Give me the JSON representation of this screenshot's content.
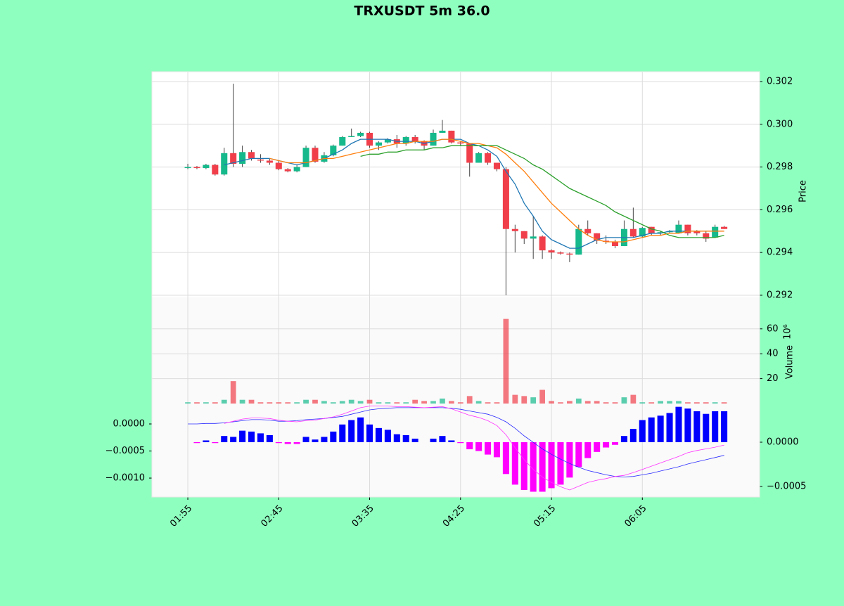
{
  "chart_data": {
    "type": "candlestick",
    "title": "TRXUSDT 5m 36.0",
    "categories": [
      "01:55",
      null,
      null,
      null,
      null,
      null,
      null,
      null,
      null,
      null,
      "02:45",
      null,
      null,
      null,
      null,
      null,
      null,
      null,
      null,
      null,
      "03:35",
      null,
      null,
      null,
      null,
      null,
      null,
      null,
      null,
      null,
      "04:25",
      null,
      null,
      null,
      null,
      null,
      null,
      null,
      null,
      null,
      "05:15",
      null,
      null,
      null,
      null,
      null,
      null,
      null,
      null,
      null,
      "06:05",
      null,
      null,
      null,
      null,
      null,
      null,
      null,
      null,
      null
    ],
    "xlim": [
      -3.95,
      62.9
    ],
    "open": [
      0.29795,
      0.298,
      0.29795,
      0.2981,
      0.29765,
      0.29865,
      0.29815,
      0.2987,
      0.29835,
      0.2983,
      0.2982,
      0.2979,
      0.2978,
      0.298,
      0.2989,
      0.29825,
      0.29855,
      0.299,
      0.2994,
      0.29945,
      0.2996,
      0.299,
      0.29915,
      0.2993,
      0.2991,
      0.2994,
      0.2992,
      0.299,
      0.2996,
      0.2997,
      0.29915,
      0.2991,
      0.2982,
      0.29865,
      0.2982,
      0.2979,
      0.2951,
      0.295,
      0.29465,
      0.29475,
      0.2941,
      0.294,
      0.29395,
      0.2939,
      0.2951,
      0.2949,
      0.29455,
      0.2945,
      0.2943,
      0.2951,
      0.29475,
      0.2952,
      0.2949,
      0.29495,
      0.2949,
      0.2953,
      0.295,
      0.2949,
      0.2947,
      0.2952
    ],
    "high": [
      0.29815,
      0.29805,
      0.29815,
      0.29815,
      0.2989,
      0.3019,
      0.299,
      0.2988,
      0.2986,
      0.2984,
      0.2983,
      0.29795,
      0.2981,
      0.299,
      0.299,
      0.2987,
      0.29905,
      0.29945,
      0.2998,
      0.29965,
      0.29965,
      0.2992,
      0.29935,
      0.2995,
      0.29945,
      0.2995,
      0.29925,
      0.29975,
      0.3002,
      0.2997,
      0.2992,
      0.2991,
      0.2987,
      0.2987,
      0.2982,
      0.298,
      0.2953,
      0.295,
      0.2957,
      0.2948,
      0.29415,
      0.29405,
      0.294,
      0.2953,
      0.2955,
      0.2949,
      0.2948,
      0.2946,
      0.2955,
      0.2961,
      0.2952,
      0.2952,
      0.295,
      0.29505,
      0.2955,
      0.2953,
      0.29505,
      0.295,
      0.2953,
      0.29525
    ],
    "low": [
      0.2979,
      0.2979,
      0.2979,
      0.2976,
      0.2976,
      0.298,
      0.298,
      0.2983,
      0.2982,
      0.2981,
      0.29785,
      0.29775,
      0.29775,
      0.298,
      0.2982,
      0.2982,
      0.2985,
      0.299,
      0.2994,
      0.2994,
      0.2989,
      0.2988,
      0.2991,
      0.2989,
      0.299,
      0.2991,
      0.2988,
      0.299,
      0.2996,
      0.2991,
      0.299,
      0.29755,
      0.2982,
      0.2981,
      0.2978,
      0.292,
      0.294,
      0.2944,
      0.2937,
      0.2937,
      0.2937,
      0.2939,
      0.29355,
      0.2939,
      0.2948,
      0.2944,
      0.2944,
      0.2942,
      0.2943,
      0.2947,
      0.2947,
      0.2948,
      0.2948,
      0.2949,
      0.2949,
      0.2948,
      0.2948,
      0.2945,
      0.2947,
      0.2951
    ],
    "close": [
      0.298,
      0.29795,
      0.2981,
      0.29765,
      0.29865,
      0.29815,
      0.2987,
      0.2984,
      0.2983,
      0.2982,
      0.2979,
      0.2978,
      0.298,
      0.2989,
      0.29825,
      0.29855,
      0.299,
      0.2994,
      0.29945,
      0.2996,
      0.299,
      0.29915,
      0.2993,
      0.2991,
      0.2994,
      0.2992,
      0.299,
      0.2996,
      0.2997,
      0.29915,
      0.2991,
      0.2982,
      0.29865,
      0.2982,
      0.2979,
      0.2951,
      0.295,
      0.29465,
      0.29475,
      0.2941,
      0.294,
      0.29395,
      0.2939,
      0.2951,
      0.2949,
      0.29455,
      0.2945,
      0.2943,
      0.2951,
      0.29475,
      0.29515,
      0.2949,
      0.29495,
      0.295,
      0.2953,
      0.2949,
      0.2949,
      0.29465,
      0.2952,
      0.2951
    ],
    "up_color": "#16b98b",
    "down_color": "#f03f4a",
    "ylim": [
      0.2919,
      0.30246
    ],
    "yticks": [
      0.292,
      0.294,
      0.296,
      0.298,
      {
        "value": 0.3,
        "label": "0.300"
      },
      0.302
    ],
    "ylabel": "Price",
    "grid": true,
    "moving_averages": [
      {
        "color": "#1f77b4",
        "values": [
          null,
          null,
          null,
          null,
          0.2981,
          0.2982,
          0.2983,
          0.2984,
          0.2984,
          0.2984,
          0.2983,
          0.2982,
          0.2981,
          0.2982,
          0.2983,
          0.2984,
          0.2986,
          0.2988,
          0.2991,
          0.2993,
          0.2993,
          0.2993,
          0.2993,
          0.2992,
          0.2992,
          0.2992,
          0.2991,
          0.2992,
          0.2993,
          0.2993,
          0.2993,
          0.2991,
          0.299,
          0.2988,
          0.2985,
          0.2978,
          0.2972,
          0.2963,
          0.2957,
          0.295,
          0.2946,
          0.2944,
          0.2942,
          0.2942,
          0.2944,
          0.2946,
          0.2947,
          0.2947,
          0.2947,
          0.2947,
          0.2948,
          0.2949,
          0.2949,
          0.295,
          0.295,
          0.295,
          0.295,
          0.295,
          0.295,
          0.295
        ]
      },
      {
        "color": "#ff7f0e",
        "values": [
          null,
          null,
          null,
          null,
          null,
          null,
          null,
          null,
          null,
          0.2984,
          0.2983,
          0.2982,
          0.2982,
          0.2982,
          0.2983,
          0.2984,
          0.2984,
          0.2985,
          0.2986,
          0.2987,
          0.2988,
          0.2989,
          0.299,
          0.2991,
          0.2991,
          0.2992,
          0.2992,
          0.2992,
          0.2993,
          0.2993,
          0.2992,
          0.2991,
          0.2991,
          0.299,
          0.2989,
          0.2986,
          0.2982,
          0.2978,
          0.2973,
          0.2968,
          0.2963,
          0.2959,
          0.2955,
          0.2951,
          0.2948,
          0.2946,
          0.2945,
          0.2945,
          0.2945,
          0.2946,
          0.2947,
          0.2948,
          0.2948,
          0.2949,
          0.2949,
          0.295,
          0.295,
          0.295,
          0.295,
          0.295
        ]
      },
      {
        "color": "#2ca02c",
        "values": [
          null,
          null,
          null,
          null,
          null,
          null,
          null,
          null,
          null,
          null,
          null,
          null,
          null,
          null,
          null,
          null,
          null,
          null,
          null,
          0.2985,
          0.2986,
          0.2986,
          0.2987,
          0.2987,
          0.2988,
          0.2988,
          0.2988,
          0.2989,
          0.2989,
          0.299,
          0.299,
          0.299,
          0.299,
          0.299,
          0.299,
          0.2988,
          0.2986,
          0.2984,
          0.2981,
          0.2979,
          0.2976,
          0.2973,
          0.297,
          0.2968,
          0.2966,
          0.2964,
          0.2962,
          0.2959,
          0.2957,
          0.2955,
          0.2953,
          0.2951,
          0.295,
          0.2948,
          0.2947,
          0.2947,
          0.2947,
          0.2947,
          0.2947,
          0.2948
        ]
      }
    ],
    "volume": {
      "values": [
        1,
        1,
        1,
        1,
        3,
        18,
        3,
        3,
        1,
        1,
        1,
        1,
        1,
        3,
        3,
        2,
        1,
        2,
        3,
        2,
        3,
        1,
        1,
        1,
        1,
        3,
        2,
        2,
        4,
        2,
        1,
        6,
        2,
        1,
        1,
        68,
        7,
        6,
        5,
        11,
        2,
        1,
        2,
        4,
        2,
        2,
        1,
        1,
        5,
        7,
        1,
        1,
        2,
        2,
        2,
        1,
        1,
        1,
        1,
        1
      ],
      "ylim": [
        0,
        85.3
      ],
      "yticks": [
        20,
        40,
        60
      ],
      "ylabel": "Volume",
      "unit_label": "10⁶"
    },
    "macd": {
      "lines": [
        {
          "color": "#2b2bff",
          "values": [
            0,
            0,
            1e-05,
            1e-05,
            2e-05,
            4e-05,
            6e-05,
            8e-05,
            8e-05,
            7e-05,
            5e-05,
            5e-05,
            6e-05,
            8e-05,
            9e-05,
            0.0001,
            0.00012,
            0.00014,
            0.00018,
            0.00022,
            0.00026,
            0.00028,
            0.00029,
            0.0003,
            0.0003,
            0.0003,
            0.0003,
            0.0003,
            0.0003,
            0.00029,
            0.00027,
            0.00024,
            0.00021,
            0.00018,
            0.00012,
            4e-05,
            -8e-05,
            -0.00022,
            -0.00034,
            -0.00046,
            -0.00056,
            -0.00065,
            -0.00073,
            -0.0008,
            -0.00086,
            -0.0009,
            -0.00094,
            -0.00097,
            -0.00098,
            -0.00097,
            -0.00094,
            -0.00091,
            -0.00087,
            -0.00083,
            -0.00079,
            -0.00074,
            -0.0007,
            -0.00066,
            -0.00062,
            -0.00058
          ]
        },
        {
          "color": "#ff33ff",
          "values": [
            null,
            null,
            null,
            null,
            1e-05,
            5e-05,
            9e-05,
            0.00011,
            0.00011,
            0.0001,
            7e-05,
            5e-05,
            4e-05,
            6e-05,
            7e-05,
            0.0001,
            0.00013,
            0.00018,
            0.00024,
            0.0003,
            0.00033,
            0.00033,
            0.00033,
            0.00032,
            0.00032,
            0.00031,
            0.0003,
            0.00031,
            0.00032,
            0.00028,
            0.00022,
            0.00016,
            0.00012,
            6e-05,
            -3e-05,
            -0.0002,
            -0.00044,
            -0.00066,
            -0.00084,
            -0.00098,
            -0.00108,
            -0.00116,
            -0.00122,
            -0.00115,
            -0.00108,
            -0.00104,
            -0.00101,
            -0.00097,
            -0.00095,
            -0.0009,
            -0.00084,
            -0.00078,
            -0.00072,
            -0.00066,
            -0.0006,
            -0.00053,
            -0.00049,
            -0.00046,
            -0.00043,
            -0.00039
          ]
        }
      ],
      "histogram": {
        "values": [
          0,
          -1e-05,
          2e-05,
          -1e-05,
          7e-05,
          6e-05,
          0.00013,
          0.00012,
          0.0001,
          8e-05,
          -1e-05,
          -2e-05,
          -2e-05,
          6e-05,
          3e-05,
          6e-05,
          0.00012,
          0.0002,
          0.00025,
          0.00028,
          0.0002,
          0.00016,
          0.00014,
          9e-05,
          8e-05,
          4e-05,
          0,
          4e-05,
          7e-05,
          2e-05,
          -1e-05,
          -8e-05,
          -0.0001,
          -0.00014,
          -0.00017,
          -0.00036,
          -0.00048,
          -0.00054,
          -0.00056,
          -0.00056,
          -0.00052,
          -0.00048,
          -0.0004,
          -0.00028,
          -0.00018,
          -0.00011,
          -6e-05,
          -3e-05,
          7e-05,
          0.00015,
          0.00025,
          0.00028,
          0.0003,
          0.00033,
          0.0004,
          0.00038,
          0.00035,
          0.00032,
          0.00035,
          0.00035
        ],
        "up_color": "#0000ff",
        "down_color": "#ff00ff"
      },
      "ylim": [
        -0.00135,
        0.000377
      ],
      "yticks": [
        {
          "value": 0,
          "label": "0.0000"
        },
        {
          "value": -0.0005,
          "label": "−0.0005"
        },
        {
          "value": -0.001,
          "label": "−0.0010"
        }
      ],
      "y2lim": [
        -0.00062,
        0.000437
      ],
      "y2ticks": [
        {
          "value": 0,
          "label": "0.0000"
        },
        {
          "value": -0.0005,
          "label": "−0.0005"
        }
      ]
    }
  }
}
